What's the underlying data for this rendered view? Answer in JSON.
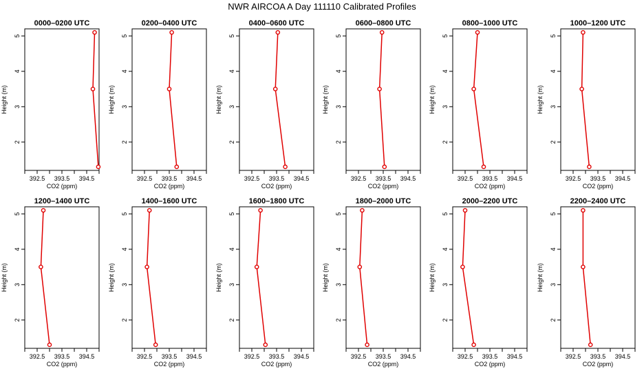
{
  "figure": {
    "title": "NWR AIRCOA A  Day 111110  Calibrated Profiles"
  },
  "style": {
    "line_color": "#e00000",
    "marker_color": "#e00000",
    "axis_color": "#000000",
    "background": "#ffffff"
  },
  "chart_data": [
    {
      "type": "line",
      "title": "0000–0200 UTC",
      "xlabel": "CO2 (ppm)",
      "ylabel": "Height (m)",
      "xlim": [
        392.0,
        395.0
      ],
      "ylim": [
        1.2,
        5.2
      ],
      "xticks": [
        "392.5",
        "393.5",
        "394.5"
      ],
      "yticks": [
        "2",
        "3",
        "4",
        "5"
      ],
      "series": [
        {
          "x": [
            394.82,
            394.75,
            394.97
          ],
          "y": [
            5.1,
            3.5,
            1.3
          ]
        }
      ]
    },
    {
      "type": "line",
      "title": "0200–0400 UTC",
      "xlabel": "CO2 (ppm)",
      "ylabel": "Height (m)",
      "xlim": [
        392.0,
        395.0
      ],
      "ylim": [
        1.2,
        5.2
      ],
      "xticks": [
        "392.5",
        "393.5",
        "394.5"
      ],
      "yticks": [
        "2",
        "3",
        "4",
        "5"
      ],
      "series": [
        {
          "x": [
            393.6,
            393.5,
            393.8
          ],
          "y": [
            5.1,
            3.5,
            1.3
          ]
        }
      ]
    },
    {
      "type": "line",
      "title": "0400–0600 UTC",
      "xlabel": "CO2 (ppm)",
      "ylabel": "Height (m)",
      "xlim": [
        392.0,
        395.0
      ],
      "ylim": [
        1.2,
        5.2
      ],
      "xticks": [
        "392.5",
        "393.5",
        "394.5"
      ],
      "yticks": [
        "2",
        "3",
        "4",
        "5"
      ],
      "series": [
        {
          "x": [
            393.55,
            393.45,
            393.85
          ],
          "y": [
            5.1,
            3.5,
            1.3
          ]
        }
      ]
    },
    {
      "type": "line",
      "title": "0600–0800 UTC",
      "xlabel": "CO2 (ppm)",
      "ylabel": "Height (m)",
      "xlim": [
        392.0,
        395.0
      ],
      "ylim": [
        1.2,
        5.2
      ],
      "xticks": [
        "392.5",
        "393.5",
        "394.5"
      ],
      "yticks": [
        "2",
        "3",
        "4",
        "5"
      ],
      "series": [
        {
          "x": [
            393.45,
            393.35,
            393.55
          ],
          "y": [
            5.1,
            3.5,
            1.3
          ]
        }
      ]
    },
    {
      "type": "line",
      "title": "0800–1000 UTC",
      "xlabel": "CO2 (ppm)",
      "ylabel": "Height (m)",
      "xlim": [
        392.0,
        395.0
      ],
      "ylim": [
        1.2,
        5.2
      ],
      "xticks": [
        "392.5",
        "393.5",
        "394.5"
      ],
      "yticks": [
        "2",
        "3",
        "4",
        "5"
      ],
      "series": [
        {
          "x": [
            393.0,
            392.85,
            393.25
          ],
          "y": [
            5.1,
            3.5,
            1.3
          ]
        }
      ]
    },
    {
      "type": "line",
      "title": "1000–1200 UTC",
      "xlabel": "CO2 (ppm)",
      "ylabel": "Height (m)",
      "xlim": [
        392.0,
        395.0
      ],
      "ylim": [
        1.2,
        5.2
      ],
      "xticks": [
        "392.5",
        "393.5",
        "394.5"
      ],
      "yticks": [
        "2",
        "3",
        "4",
        "5"
      ],
      "series": [
        {
          "x": [
            392.9,
            392.85,
            393.15
          ],
          "y": [
            5.1,
            3.5,
            1.3
          ]
        }
      ]
    },
    {
      "type": "line",
      "title": "1200–1400 UTC",
      "xlabel": "CO2 (ppm)",
      "ylabel": "Height (m)",
      "xlim": [
        392.0,
        395.0
      ],
      "ylim": [
        1.2,
        5.2
      ],
      "xticks": [
        "392.5",
        "393.5",
        "394.5"
      ],
      "yticks": [
        "2",
        "3",
        "4",
        "5"
      ],
      "series": [
        {
          "x": [
            392.75,
            392.65,
            393.0
          ],
          "y": [
            5.1,
            3.5,
            1.3
          ]
        }
      ]
    },
    {
      "type": "line",
      "title": "1400–1600 UTC",
      "xlabel": "CO2 (ppm)",
      "ylabel": "Height (m)",
      "xlim": [
        392.0,
        395.0
      ],
      "ylim": [
        1.2,
        5.2
      ],
      "xticks": [
        "392.5",
        "393.5",
        "394.5"
      ],
      "yticks": [
        "2",
        "3",
        "4",
        "5"
      ],
      "series": [
        {
          "x": [
            392.7,
            392.6,
            392.95
          ],
          "y": [
            5.1,
            3.5,
            1.3
          ]
        }
      ]
    },
    {
      "type": "line",
      "title": "1600–1800 UTC",
      "xlabel": "CO2 (ppm)",
      "ylabel": "Height (m)",
      "xlim": [
        392.0,
        395.0
      ],
      "ylim": [
        1.2,
        5.2
      ],
      "xticks": [
        "392.5",
        "393.5",
        "394.5"
      ],
      "yticks": [
        "2",
        "3",
        "4",
        "5"
      ],
      "series": [
        {
          "x": [
            392.85,
            392.7,
            393.05
          ],
          "y": [
            5.1,
            3.5,
            1.3
          ]
        }
      ]
    },
    {
      "type": "line",
      "title": "1800–2000 UTC",
      "xlabel": "CO2 (ppm)",
      "ylabel": "Height (m)",
      "xlim": [
        392.0,
        395.0
      ],
      "ylim": [
        1.2,
        5.2
      ],
      "xticks": [
        "392.5",
        "393.5",
        "394.5"
      ],
      "yticks": [
        "2",
        "3",
        "4",
        "5"
      ],
      "series": [
        {
          "x": [
            392.65,
            392.55,
            392.85
          ],
          "y": [
            5.1,
            3.5,
            1.3
          ]
        }
      ]
    },
    {
      "type": "line",
      "title": "2000–2200 UTC",
      "xlabel": "CO2 (ppm)",
      "ylabel": "Height (m)",
      "xlim": [
        392.0,
        395.0
      ],
      "ylim": [
        1.2,
        5.2
      ],
      "xticks": [
        "392.5",
        "393.5",
        "394.5"
      ],
      "yticks": [
        "2",
        "3",
        "4",
        "5"
      ],
      "series": [
        {
          "x": [
            392.5,
            392.4,
            392.85
          ],
          "y": [
            5.1,
            3.5,
            1.3
          ]
        }
      ]
    },
    {
      "type": "line",
      "title": "2200–2400 UTC",
      "xlabel": "CO2 (ppm)",
      "ylabel": "Height (m)",
      "xlim": [
        392.0,
        395.0
      ],
      "ylim": [
        1.2,
        5.2
      ],
      "xticks": [
        "392.5",
        "393.5",
        "394.5"
      ],
      "yticks": [
        "2",
        "3",
        "4",
        "5"
      ],
      "series": [
        {
          "x": [
            392.9,
            392.9,
            393.2
          ],
          "y": [
            5.1,
            3.5,
            1.3
          ]
        }
      ]
    }
  ]
}
